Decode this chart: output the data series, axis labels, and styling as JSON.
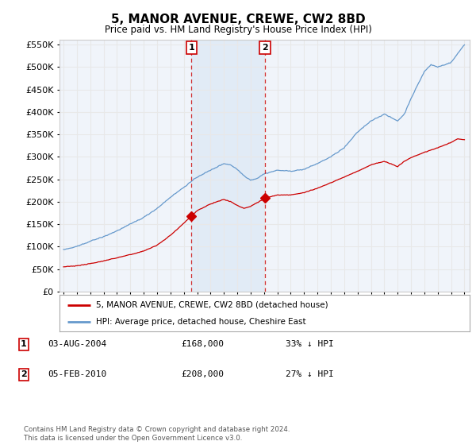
{
  "title": "5, MANOR AVENUE, CREWE, CW2 8BD",
  "subtitle": "Price paid vs. HM Land Registry's House Price Index (HPI)",
  "background_color": "#ffffff",
  "plot_bg_color": "#f0f4fa",
  "grid_color": "#e8e8e8",
  "red_line_color": "#cc0000",
  "blue_line_color": "#6699cc",
  "shade_color": "#dce8f5",
  "sale1_year": 2004.58,
  "sale1_price": 168000,
  "sale2_year": 2010.08,
  "sale2_price": 208000,
  "ylim_min": 0,
  "ylim_max": 560000,
  "ytick_interval": 50000,
  "legend_red": "5, MANOR AVENUE, CREWE, CW2 8BD (detached house)",
  "legend_blue": "HPI: Average price, detached house, Cheshire East",
  "footer": "Contains HM Land Registry data © Crown copyright and database right 2024.\nThis data is licensed under the Open Government Licence v3.0.",
  "table_rows": [
    {
      "num": "1",
      "date": "03-AUG-2004",
      "price": "£168,000",
      "hpi": "33% ↓ HPI"
    },
    {
      "num": "2",
      "date": "05-FEB-2010",
      "price": "£208,000",
      "hpi": "27% ↓ HPI"
    }
  ],
  "hpi_key_years": [
    1995,
    1996,
    1997,
    1998,
    1999,
    2000,
    2001,
    2002,
    2003,
    2004,
    2005,
    2006,
    2007,
    2007.5,
    2008,
    2008.5,
    2009,
    2009.5,
    2010,
    2011,
    2012,
    2013,
    2014,
    2015,
    2016,
    2017,
    2018,
    2019,
    2020,
    2020.5,
    2021,
    2021.5,
    2022,
    2022.5,
    2023,
    2024,
    2024.5,
    2025
  ],
  "hpi_key_vals": [
    93000,
    100000,
    112000,
    122000,
    135000,
    150000,
    165000,
    185000,
    210000,
    232000,
    255000,
    270000,
    285000,
    282000,
    272000,
    258000,
    248000,
    252000,
    262000,
    270000,
    268000,
    272000,
    285000,
    300000,
    320000,
    355000,
    380000,
    395000,
    380000,
    395000,
    430000,
    460000,
    490000,
    505000,
    500000,
    510000,
    530000,
    550000
  ],
  "red_key_years": [
    1995,
    1996,
    1997,
    1998,
    1999,
    2000,
    2001,
    2002,
    2003,
    2004,
    2004.58,
    2005,
    2006,
    2007,
    2007.5,
    2008,
    2008.5,
    2009,
    2009.5,
    2010,
    2010.08,
    2011,
    2012,
    2013,
    2014,
    2015,
    2016,
    2017,
    2018,
    2019,
    2020,
    2020.5,
    2021,
    2022,
    2023,
    2024,
    2024.5,
    2025
  ],
  "red_key_vals": [
    55000,
    57000,
    62000,
    68000,
    75000,
    82000,
    90000,
    103000,
    125000,
    152000,
    168000,
    180000,
    195000,
    205000,
    200000,
    192000,
    185000,
    190000,
    198000,
    206000,
    208000,
    215000,
    215000,
    220000,
    230000,
    242000,
    255000,
    268000,
    282000,
    290000,
    278000,
    290000,
    298000,
    310000,
    320000,
    332000,
    340000,
    338000
  ]
}
